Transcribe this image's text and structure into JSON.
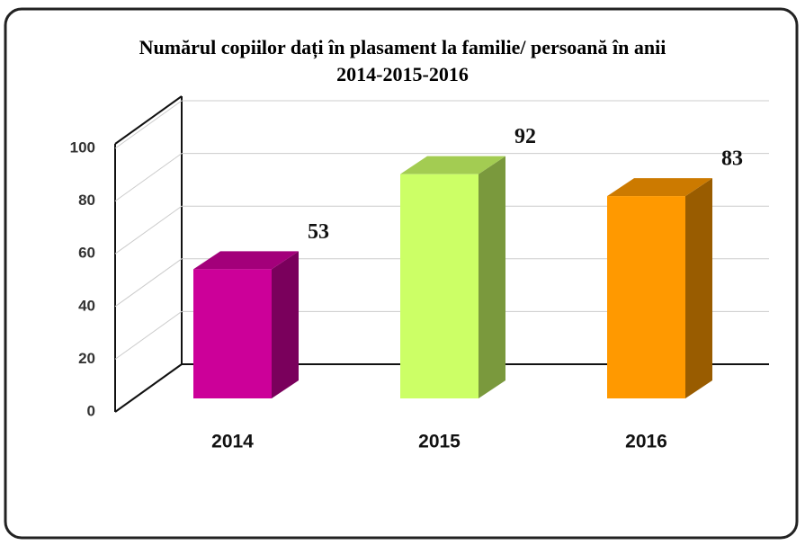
{
  "chart_data": {
    "type": "bar3d",
    "title": "Numărul copiilor dați în plasament la familie/ persoană în anii 2014-2015-2016",
    "categories": [
      "2014",
      "2015",
      "2016"
    ],
    "values": [
      53,
      92,
      83
    ],
    "colors": [
      "#cc0099",
      "#ccff66",
      "#ff9900"
    ],
    "ylim": [
      0,
      100
    ],
    "yticks": [
      0,
      20,
      40,
      60,
      80,
      100
    ],
    "grid": true
  }
}
